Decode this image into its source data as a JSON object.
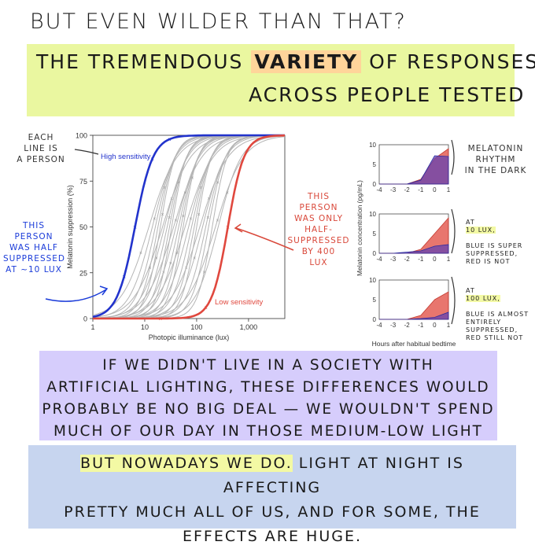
{
  "heading": "BUT EVEN WILDER THAN THAT?",
  "banner": {
    "line1_pre": "THE TREMENDOUS",
    "line1_highlight": "VARIETY",
    "line1_post": "OF RESPONSES",
    "line2": "ACROSS PEOPLE TESTED"
  },
  "annotations": {
    "each_line": "EACH\nLINE IS\nA PERSON",
    "half_suppressed": "THIS\nPERSON\nWAS HALF\nSUPPRESSED\nAT ~10 LUX",
    "only_half": "THIS\nPERSON\nWAS ONLY\nHALF-\nSUPPRESSED\nBY 400\nLUX",
    "rhythm": "MELATONIN\nRHYTHM\nIN THE DARK",
    "ten_lux_hl": "10 LUX,",
    "ten_lux_pre": "AT",
    "ten_lux_rest": "BLUE IS SUPER\nSUPPRESSED,\nRED IS NOT",
    "hundred_lux_hl": "100 LUX,",
    "hundred_lux_pre": "AT",
    "hundred_lux_rest": "BLUE IS ALMOST\nENTIRELY\nSUPPRESSED,\nRED STILL NOT"
  },
  "paragraph1": [
    "IF WE DIDN'T LIVE IN A SOCIETY WITH",
    "ARTIFICIAL LIGHTING, THESE DIFFERENCES WOULD",
    "PROBABLY BE NO BIG DEAL — WE WOULDN'T SPEND",
    "MUCH OF OUR DAY IN THOSE MEDIUM-LOW LIGHT LEVELS."
  ],
  "paragraph2": {
    "highlight": "BUT NOWADAYS WE DO.",
    "line1_rest": "LIGHT AT NIGHT IS AFFECTING",
    "line2": "PRETTY MUCH ALL OF US, AND FOR SOME, THE",
    "line3": "EFFECTS ARE HUGE."
  },
  "colors": {
    "blue": "#2233cc",
    "red": "#e0483e",
    "grey": "#b5b5b5",
    "purple": "#5b3fb5",
    "yellowBand": "#eaf7a0",
    "purpleBand": "#d6cdfc",
    "blueBand": "#c7d5ef"
  },
  "chart_data": [
    {
      "type": "line",
      "xlabel": "Photopic illuminance (lux)",
      "ylabel": "Melatonin suppression (%)",
      "xscale": "log",
      "xlim": [
        1,
        5000
      ],
      "ylim": [
        0,
        100
      ],
      "xticks": [
        "1",
        "10",
        "100",
        "1,000"
      ],
      "yticks": [
        "0",
        "25",
        "50",
        "75",
        "100"
      ],
      "series": [
        {
          "name": "High sensitivity",
          "color": "#2233cc",
          "ec50": 6.5,
          "slope": 2.5
        },
        {
          "name": "Low sensitivity",
          "color": "#e0483e",
          "ec50": 400,
          "slope": 2.8
        }
      ],
      "grey_ec50s": [
        12,
        14,
        16,
        18,
        20,
        22,
        24,
        27,
        30,
        33,
        36,
        40,
        45,
        50,
        55,
        60,
        70,
        80,
        90,
        100,
        115,
        130,
        150,
        170,
        200,
        230,
        260
      ],
      "grey_color": "#b5b5b5",
      "markers": {
        "blue_x": [
          4,
          6.5,
          14,
          30
        ],
        "red_x": [
          20,
          150,
          400
        ]
      }
    },
    {
      "type": "area",
      "xlabel": "Hours after habitual bedtime",
      "ylabel": "Melatonin concentration (pg/mL)",
      "x": [
        -4,
        -3,
        -2,
        -1,
        0,
        1
      ],
      "xticks": [
        "-4",
        "-3",
        "-2",
        "-1",
        "0",
        "1"
      ],
      "yticks": [
        "0",
        "5",
        "10"
      ],
      "ylim": [
        0,
        10
      ],
      "panels": [
        {
          "series": [
            {
              "name": "red",
              "values": [
                0,
                0,
                0,
                1.2,
                6.5,
                9.0
              ]
            },
            {
              "name": "blue",
              "values": [
                0,
                0,
                0,
                1.0,
                7.2,
                7.0
              ]
            }
          ]
        },
        {
          "series": [
            {
              "name": "red",
              "values": [
                0,
                0,
                0,
                1.0,
                5.0,
                9.0
              ]
            },
            {
              "name": "blue",
              "values": [
                0,
                0,
                0.3,
                0.6,
                1.8,
                2.2
              ]
            }
          ]
        },
        {
          "series": [
            {
              "name": "red",
              "values": [
                0,
                0,
                0,
                1.0,
                5.0,
                7.0
              ]
            },
            {
              "name": "blue",
              "values": [
                0,
                0,
                0,
                0.2,
                0.5,
                1.8
              ]
            }
          ]
        }
      ]
    }
  ]
}
